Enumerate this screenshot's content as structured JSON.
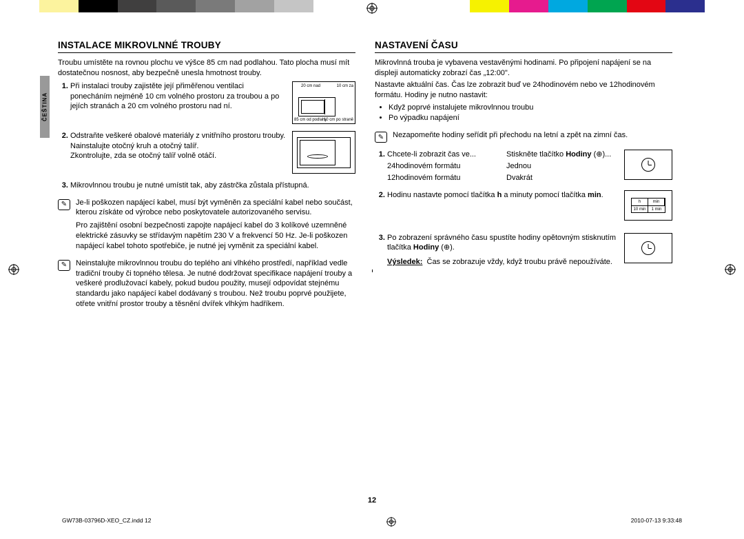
{
  "colorBar": [
    "#ffffff",
    "#fcf39e",
    "#000000",
    "#403f3f",
    "#5a5a5a",
    "#7a7a7a",
    "#a2a2a2",
    "#c5c5c5",
    "#ffffff",
    "#ffffff",
    "#ffffff",
    "#ffffff",
    "#f6f200",
    "#e61b8e",
    "#00a8e0",
    "#00a550",
    "#e30613",
    "#2b2f8e",
    "#ffffff"
  ],
  "sideTab": "ČEŠTINA",
  "left": {
    "heading": "INSTALACE MIKROVLNNÉ TROUBY",
    "intro": "Troubu umístěte na rovnou plochu ve výšce 85 cm nad podlahou. Tato plocha musí mít dostatečnou nosnost, aby bezpečně unesla hmotnost trouby.",
    "item1": "Při instalaci trouby zajistěte její přiměřenou ventilaci ponecháním nejméně 10 cm volného prostoru za troubou a po jejích stranách a 20 cm volného prostoru nad ní.",
    "fig1": {
      "top": "20 cm nad",
      "right": "10 cm za",
      "bl": "85 cm od podlahy",
      "br": "10 cm po straně"
    },
    "item2a": "Odstraňte veškeré obalové materiály z vnitřního prostoru trouby.",
    "item2b": "Nainstalujte otočný kruh a otočný talíř.",
    "item2c": "Zkontrolujte, zda se otočný talíř volně otáčí.",
    "item3": "Mikrovlnnou troubu je nutné umístit tak, aby zástrčka zůstala přístupná.",
    "note1a": "Je-li poškozen napájecí kabel, musí být vyměněn za speciální kabel nebo součást, kterou získáte od výrobce nebo poskytovatele autorizovaného servisu.",
    "note1b": "Pro zajištění osobní bezpečnosti zapojte napájecí kabel do 3 kolíkové uzemněné elektrické zásuvky se střídavým napětím 230 V a frekvencí 50 Hz. Je-li poškozen napájecí kabel tohoto spotřebiče, je nutné jej vyměnit za speciální kabel.",
    "note2": "Neinstalujte mikrovlnnou troubu do teplého ani vlhkého prostředí, například vedle tradiční trouby či topného tělesa. Je nutné dodržovat specifikace napájení trouby a veškeré prodlužovací kabely, pokud budou použity, musejí odpovídat stejnému standardu jako napájecí kabel dodávaný s troubou. Než troubu poprvé použijete, otřete vnitřní prostor trouby a těsnění dvířek vlhkým hadříkem."
  },
  "right": {
    "heading": "NASTAVENÍ ČASU",
    "p1": "Mikrovlnná trouba je vybavena vestavěnými hodinami. Po připojení napájení se na displeji automaticky zobrazí čas „12:00\".",
    "p2": "Nastavte aktuální čas. Čas lze zobrazit buď ve 24hodinovém nebo ve 12hodinovém formátu. Hodiny je nutno nastavit:",
    "b1": "Když poprvé instalujete mikrovlnnou troubu",
    "b2": "Po výpadku napájení",
    "note": "Nezapomeňte hodiny seřídit při přechodu na letní a zpět na zimní čas.",
    "s1": {
      "l1a": "Chcete-li zobrazit čas ve...",
      "l1b": "Stiskněte tlačítko",
      "l1c": "Hodiny",
      "l1d": "(⊕)...",
      "r1a": "24hodinovém formátu",
      "r1b": "Jednou",
      "r2a": "12hodinovém formátu",
      "r2b": "Dvakrát"
    },
    "s2pre": "Hodinu nastavte pomocí tlačítka ",
    "s2h": "h",
    "s2mid": " a minuty pomocí tlačítka ",
    "s2min": "min",
    "s2post": ".",
    "hmin": {
      "h": "h",
      "min": "min",
      "hv": "10 min",
      "mv": "1 min"
    },
    "s3a": "Po zobrazení správného času spustíte hodiny opětovným stisknutím tlačítka ",
    "s3b": "Hodiny",
    "s3c": " (⊕).",
    "resLabel": "Výsledek:",
    "resText": "Čas se zobrazuje vždy, když troubu právě nepoužíváte."
  },
  "pageNum": "12",
  "footer": {
    "left": "GW73B-03796D-XEO_CZ.indd   12",
    "right": "2010-07-13   9:33:48"
  }
}
